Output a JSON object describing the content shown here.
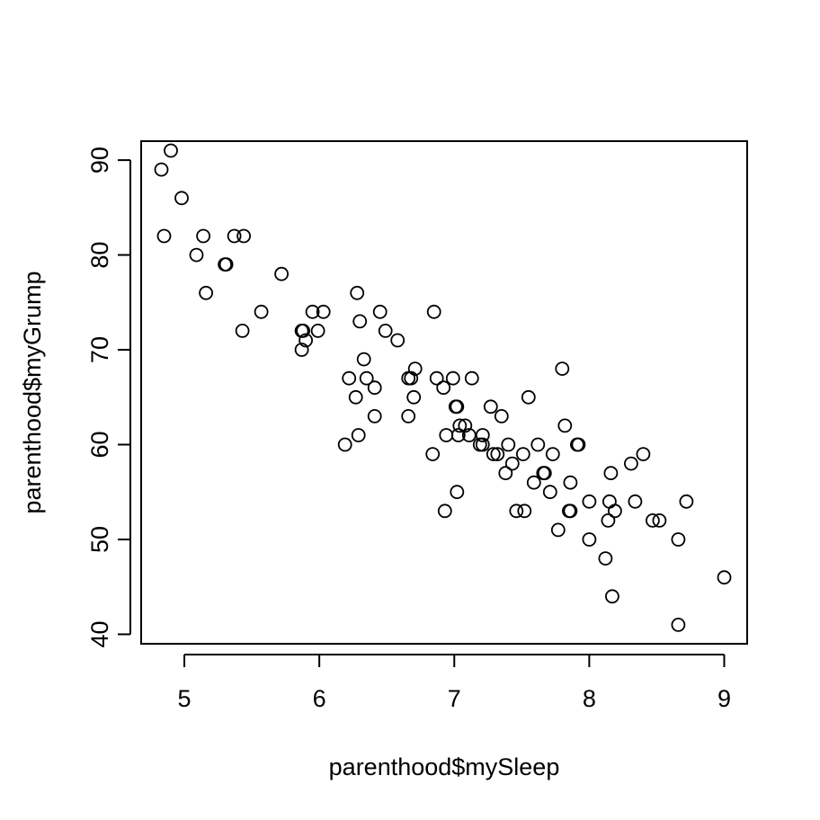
{
  "chart_data": {
    "type": "scatter",
    "title": "",
    "xlabel": "parenthood$mySleep",
    "ylabel": "parenthood$myGrump",
    "xlim": [
      4.68,
      9.17
    ],
    "ylim": [
      39.0,
      92.0
    ],
    "xticks": [
      "5",
      "6",
      "7",
      "8",
      "9"
    ],
    "yticks": [
      "40",
      "50",
      "60",
      "70",
      "80",
      "90"
    ],
    "grid": false,
    "legend": "none",
    "marker": "open-circle",
    "marker_color": "#000000",
    "points": [
      [
        4.83,
        89
      ],
      [
        4.9,
        91
      ],
      [
        4.85,
        82
      ],
      [
        4.98,
        86
      ],
      [
        5.09,
        80
      ],
      [
        5.14,
        82
      ],
      [
        5.16,
        76
      ],
      [
        5.3,
        79
      ],
      [
        5.31,
        79
      ],
      [
        5.37,
        82
      ],
      [
        5.44,
        82
      ],
      [
        5.43,
        72
      ],
      [
        5.57,
        74
      ],
      [
        5.72,
        78
      ],
      [
        5.87,
        72
      ],
      [
        5.88,
        72
      ],
      [
        5.9,
        71
      ],
      [
        5.87,
        70
      ],
      [
        5.95,
        74
      ],
      [
        5.99,
        72
      ],
      [
        6.03,
        74
      ],
      [
        6.19,
        60
      ],
      [
        6.22,
        67
      ],
      [
        6.27,
        65
      ],
      [
        6.28,
        76
      ],
      [
        6.29,
        61
      ],
      [
        6.3,
        73
      ],
      [
        6.33,
        69
      ],
      [
        6.35,
        67
      ],
      [
        6.41,
        66
      ],
      [
        6.41,
        63
      ],
      [
        6.45,
        74
      ],
      [
        6.49,
        72
      ],
      [
        6.58,
        71
      ],
      [
        6.66,
        67
      ],
      [
        6.66,
        63
      ],
      [
        6.68,
        67
      ],
      [
        6.7,
        65
      ],
      [
        6.71,
        68
      ],
      [
        6.84,
        59
      ],
      [
        6.85,
        74
      ],
      [
        6.87,
        67
      ],
      [
        6.92,
        66
      ],
      [
        6.94,
        61
      ],
      [
        6.93,
        53
      ],
      [
        6.99,
        67
      ],
      [
        7.01,
        64
      ],
      [
        7.02,
        64
      ],
      [
        7.02,
        55
      ],
      [
        7.03,
        61
      ],
      [
        7.04,
        62
      ],
      [
        7.08,
        62
      ],
      [
        7.11,
        61
      ],
      [
        7.13,
        67
      ],
      [
        7.19,
        60
      ],
      [
        7.21,
        61
      ],
      [
        7.21,
        60
      ],
      [
        7.27,
        64
      ],
      [
        7.29,
        59
      ],
      [
        7.32,
        59
      ],
      [
        7.35,
        63
      ],
      [
        7.38,
        57
      ],
      [
        7.4,
        60
      ],
      [
        7.43,
        58
      ],
      [
        7.46,
        53
      ],
      [
        7.51,
        59
      ],
      [
        7.52,
        53
      ],
      [
        7.55,
        65
      ],
      [
        7.59,
        56
      ],
      [
        7.62,
        60
      ],
      [
        7.66,
        57
      ],
      [
        7.67,
        57
      ],
      [
        7.71,
        55
      ],
      [
        7.73,
        59
      ],
      [
        7.77,
        51
      ],
      [
        7.8,
        68
      ],
      [
        7.82,
        62
      ],
      [
        7.85,
        53
      ],
      [
        7.86,
        56
      ],
      [
        7.86,
        53
      ],
      [
        7.91,
        60
      ],
      [
        7.92,
        60
      ],
      [
        8.0,
        54
      ],
      [
        8.0,
        50
      ],
      [
        8.12,
        48
      ],
      [
        8.14,
        52
      ],
      [
        8.15,
        54
      ],
      [
        8.16,
        57
      ],
      [
        8.17,
        44
      ],
      [
        8.19,
        53
      ],
      [
        8.31,
        58
      ],
      [
        8.34,
        54
      ],
      [
        8.4,
        59
      ],
      [
        8.47,
        52
      ],
      [
        8.52,
        52
      ],
      [
        8.66,
        50
      ],
      [
        8.66,
        41
      ],
      [
        8.72,
        54
      ],
      [
        9.0,
        46
      ]
    ]
  }
}
